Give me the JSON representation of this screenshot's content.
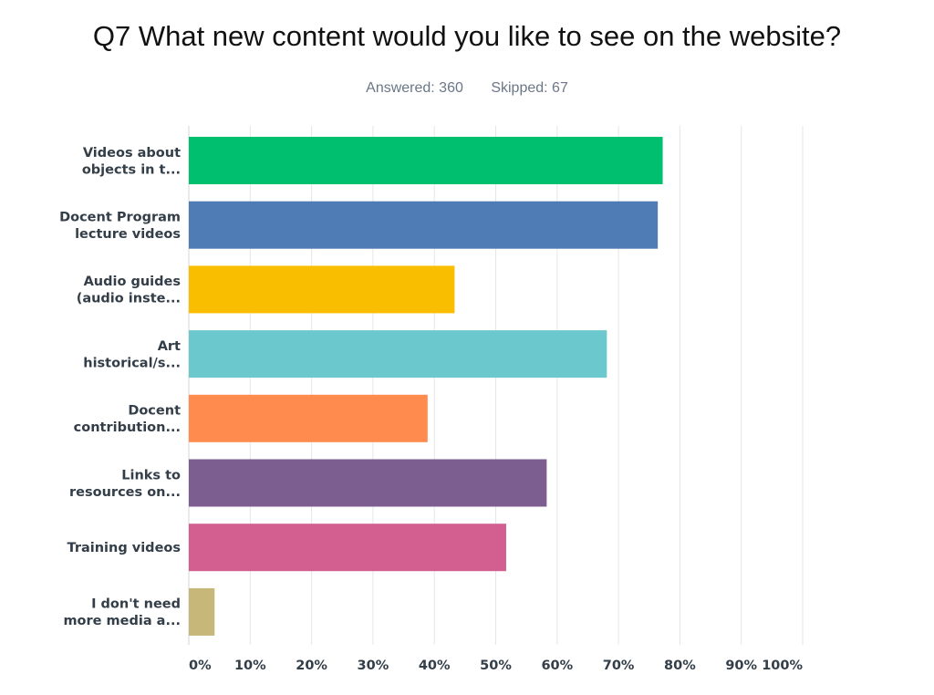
{
  "header": {
    "title": "Q7 What new content would you like to see on the website?",
    "answered": "Answered: 360",
    "skipped": "Skipped: 67"
  },
  "chart_data": {
    "type": "bar",
    "orientation": "horizontal",
    "categories": [
      [
        "Videos about",
        "objects in t..."
      ],
      [
        "Docent Program",
        "lecture videos"
      ],
      [
        "Audio guides",
        "(audio inste..."
      ],
      [
        "Art",
        "historical/s..."
      ],
      [
        "Docent",
        "contribution..."
      ],
      [
        "Links to",
        "resources on..."
      ],
      [
        "Training videos"
      ],
      [
        "I don't need",
        "more media a..."
      ]
    ],
    "values": [
      77.2,
      76.4,
      43.3,
      68.1,
      38.9,
      58.3,
      51.7,
      4.2
    ],
    "colors": [
      "#00bf6f",
      "#507cb6",
      "#f9be00",
      "#6bc8cd",
      "#ff8b4f",
      "#7d5e90",
      "#d25f90",
      "#c7b879"
    ],
    "xlim": [
      0,
      100
    ],
    "xticks": [
      "0%",
      "10%",
      "20%",
      "30%",
      "40%",
      "50%",
      "60%",
      "70%",
      "80%",
      "90%",
      "100%"
    ],
    "grid": true
  }
}
